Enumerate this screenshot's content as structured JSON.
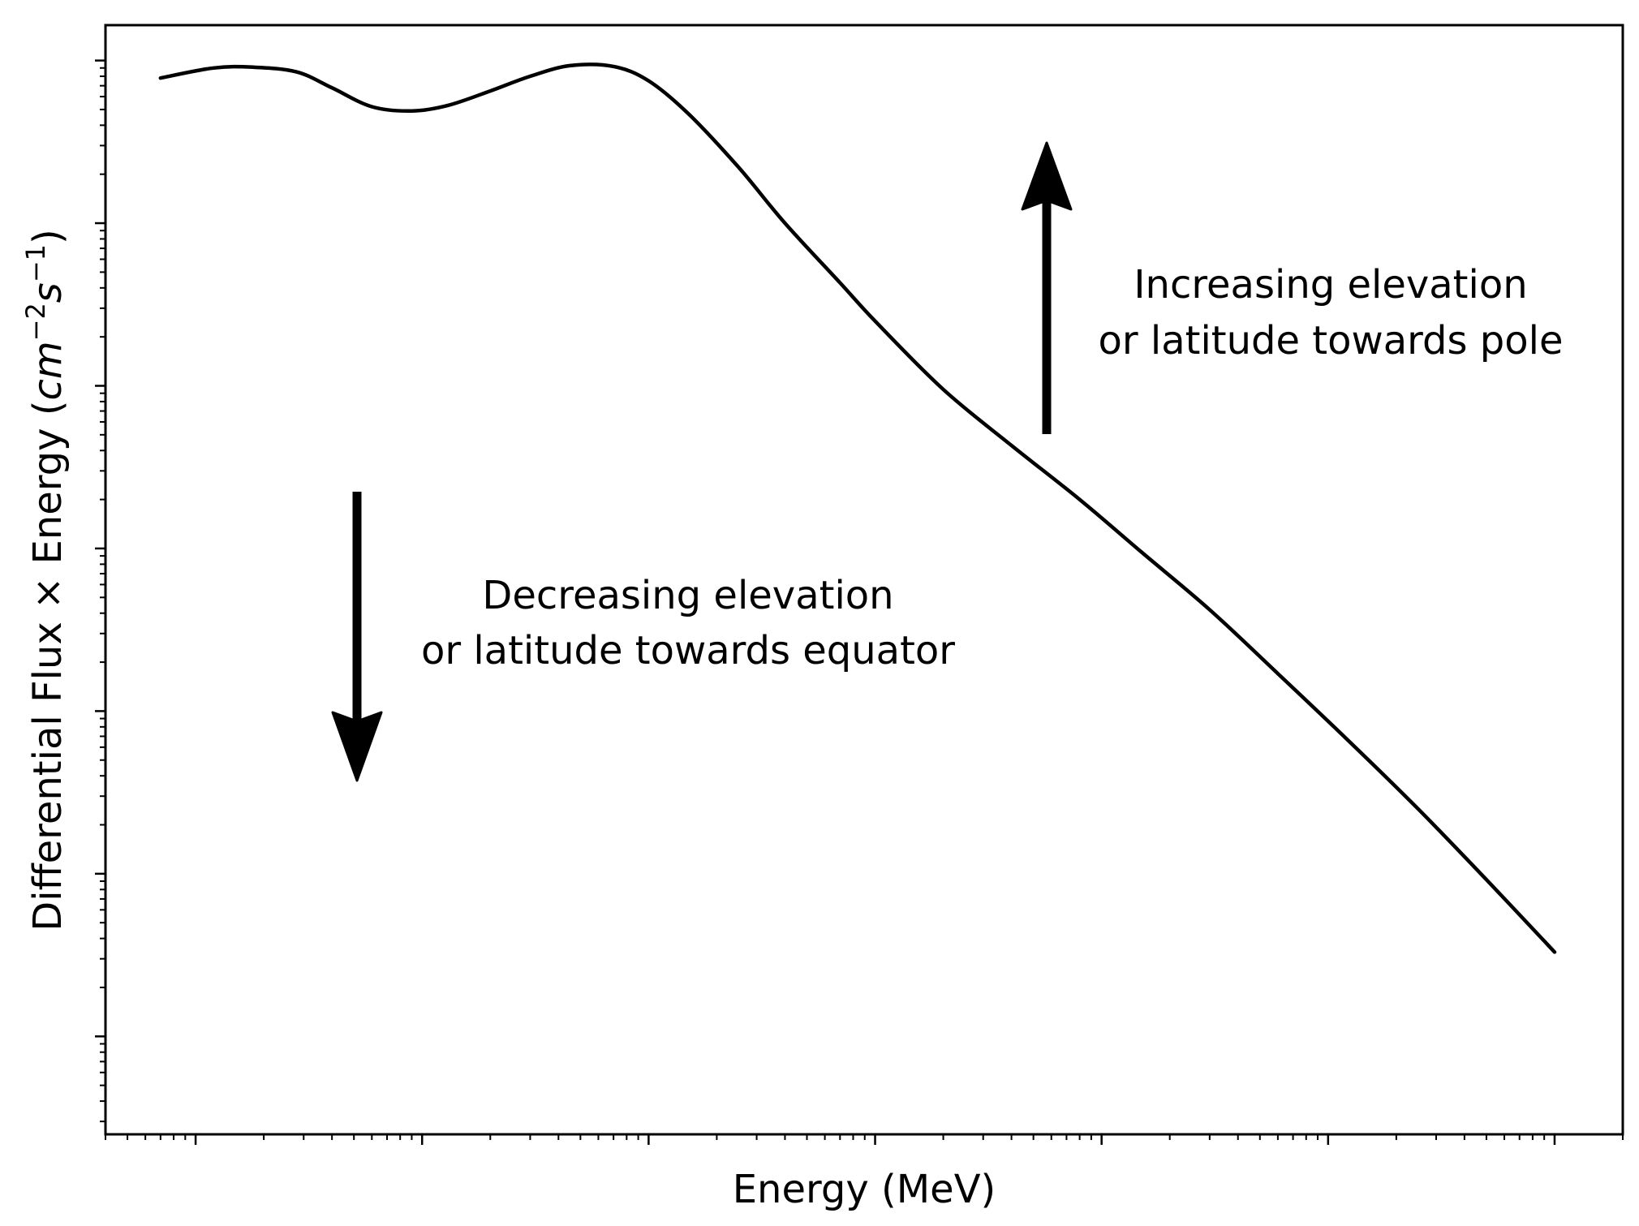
{
  "chart_data": {
    "type": "line",
    "title": "",
    "xlabel": "Energy (MeV)",
    "ylabel": {
      "prefix": "Differential Flux × Energy (",
      "unit_base1": "cm",
      "unit_exp1": "−2",
      "unit_base2": "s",
      "unit_exp2": "−1",
      "suffix": ")"
    },
    "xscale": "log",
    "yscale": "log",
    "xlim": [
      0.0004,
      2000
    ],
    "ylim": [
      2.5e-07,
      1.65
    ],
    "x_tick_labels_shown": false,
    "y_tick_labels_shown": false,
    "grid": false,
    "legend": "none",
    "colors": {
      "line": "#000000",
      "axes": "#000000",
      "background": "#ffffff"
    },
    "series": [
      {
        "x": [
          0.0007,
          0.0012,
          0.0018,
          0.0028,
          0.004,
          0.006,
          0.009,
          0.013,
          0.02,
          0.03,
          0.045,
          0.07,
          0.1,
          0.15,
          0.25,
          0.4,
          0.7,
          1,
          2,
          4,
          8,
          15,
          30,
          60,
          120,
          250,
          500,
          1000
        ],
        "y": [
          0.78,
          0.9,
          0.91,
          0.85,
          0.68,
          0.52,
          0.49,
          0.53,
          0.65,
          0.8,
          0.93,
          0.92,
          0.75,
          0.47,
          0.22,
          0.1,
          0.043,
          0.025,
          0.0095,
          0.0043,
          0.002,
          0.00095,
          0.00042,
          0.00017,
          6.8e-05,
          2.5e-05,
          9.2e-06,
          3.3e-06
        ]
      }
    ],
    "annotations": [
      {
        "lines": [
          "Increasing elevation",
          "or latitude towards pole"
        ],
        "arrow": "up"
      },
      {
        "lines": [
          "Decreasing elevation",
          "or latitude towards equator"
        ],
        "arrow": "down"
      }
    ]
  }
}
